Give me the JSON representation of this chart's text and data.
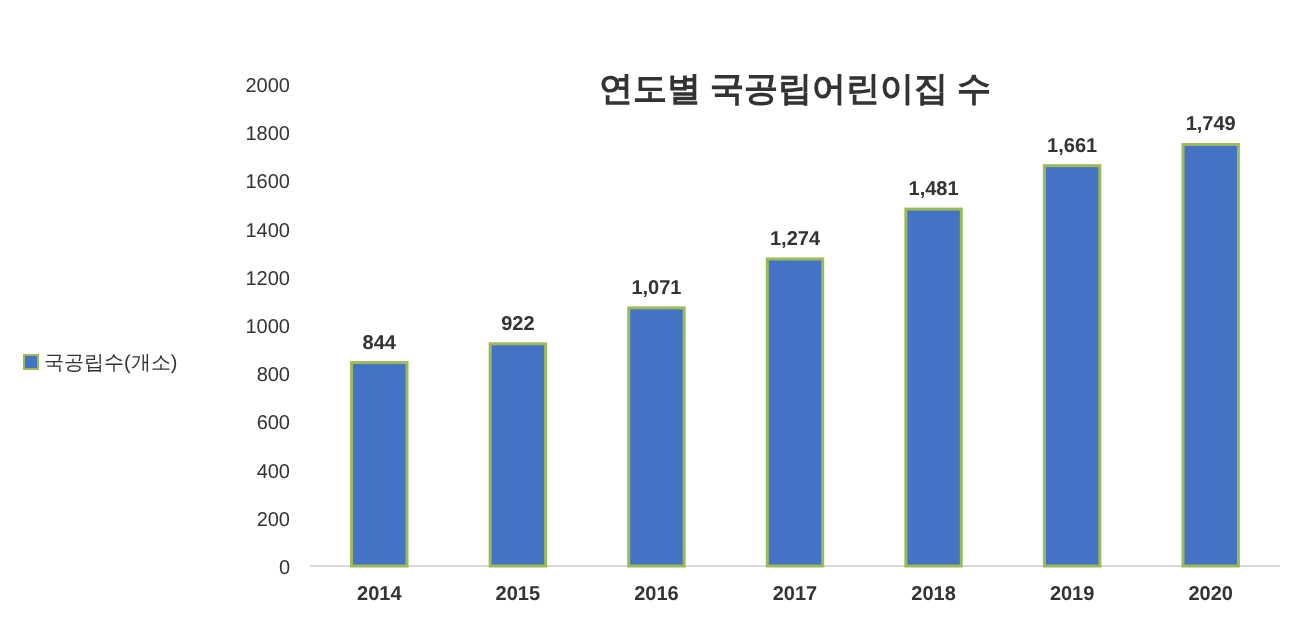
{
  "chart_data": {
    "type": "bar",
    "title": "연도별 국공립어린이집 수",
    "categories": [
      "2014",
      "2015",
      "2016",
      "2017",
      "2018",
      "2019",
      "2020"
    ],
    "series": [
      {
        "name": "국공립수(개소)",
        "color": "#4472c4",
        "values": [
          844,
          922,
          1071,
          1274,
          1481,
          1661,
          1749
        ],
        "value_labels": [
          "844",
          "922",
          "1,071",
          "1,274",
          "1,481",
          "1,661",
          "1,749"
        ]
      }
    ],
    "ylim": [
      0,
      2000
    ],
    "yticks": [
      0,
      200,
      400,
      600,
      800,
      1000,
      1200,
      1400,
      1600,
      1800,
      2000
    ],
    "grid": false,
    "legend": "left"
  }
}
